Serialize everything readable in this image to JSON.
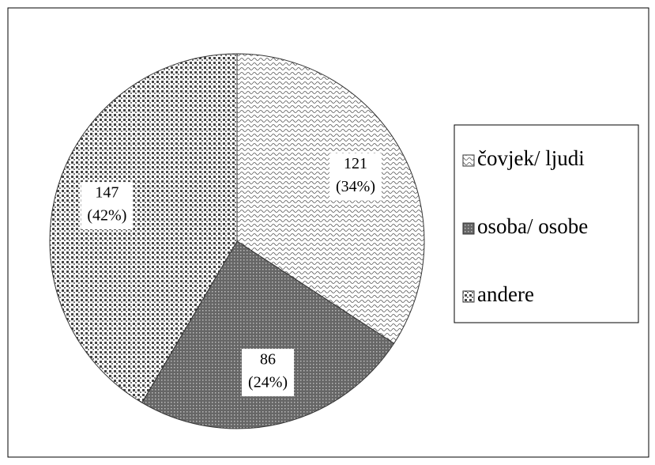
{
  "chart_data": {
    "type": "pie",
    "categories": [
      "čovjek/ ljudi",
      "osoba/ osobe",
      "andere"
    ],
    "values": [
      121,
      86,
      147
    ],
    "percent_labels": [
      "(34%)",
      "(24%)",
      "(42%)"
    ],
    "legend": "right"
  }
}
